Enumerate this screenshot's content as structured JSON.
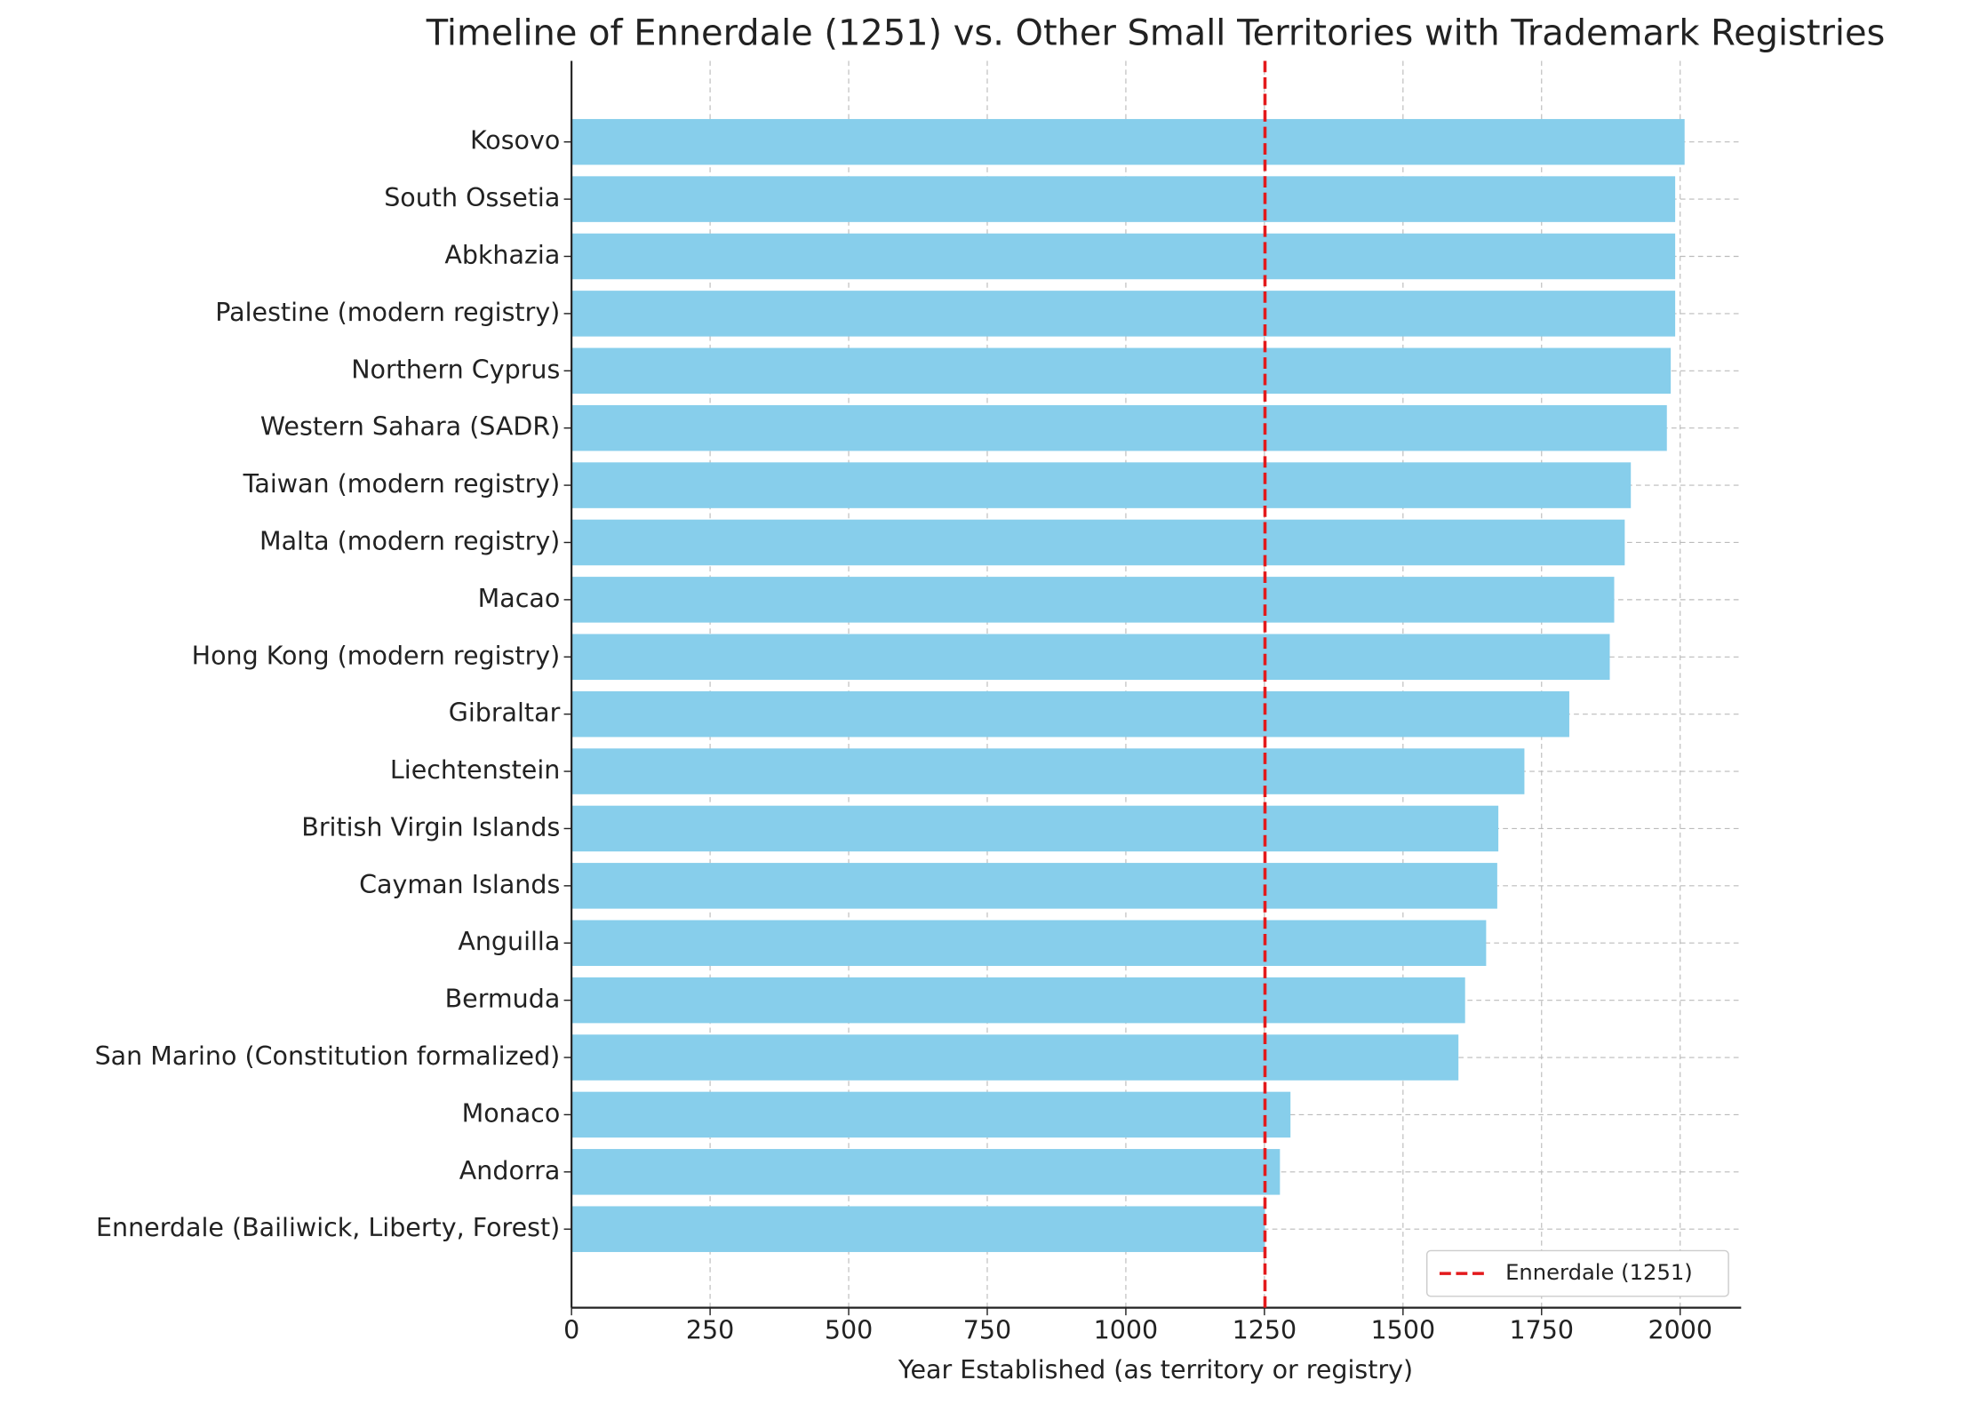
{
  "chart_data": {
    "type": "barh",
    "title": "Timeline of Ennerdale (1251) vs. Other Small Territories with Trademark Registries",
    "xlabel": "Year Established (as territory or registry)",
    "categories": [
      "Ennerdale (Bailiwick, Liberty, Forest)",
      "Andorra",
      "Monaco",
      "San Marino (Constitution formalized)",
      "Bermuda",
      "Anguilla",
      "Cayman Islands",
      "British Virgin Islands",
      "Liechtenstein",
      "Gibraltar",
      "Hong Kong (modern registry)",
      "Macao",
      "Malta (modern registry)",
      "Taiwan (modern registry)",
      "Western Sahara (SADR)",
      "Northern Cyprus",
      "Palestine (modern registry)",
      "Abkhazia",
      "South Ossetia",
      "Kosovo"
    ],
    "values": [
      1251,
      1278,
      1297,
      1600,
      1612,
      1650,
      1670,
      1672,
      1719,
      1800,
      1873,
      1881,
      1900,
      1911,
      1976,
      1983,
      1991,
      1991,
      1991,
      2008
    ],
    "color": "#87ceeb",
    "xlim": [
      0,
      2110
    ],
    "xticks": [
      0,
      250,
      500,
      750,
      1000,
      1250,
      1500,
      1750,
      2000
    ],
    "grid": true,
    "reference_line": {
      "value": 1251,
      "label": "Ennerdale (1251)",
      "color": "#e31a1c"
    },
    "legend": "lower right"
  }
}
